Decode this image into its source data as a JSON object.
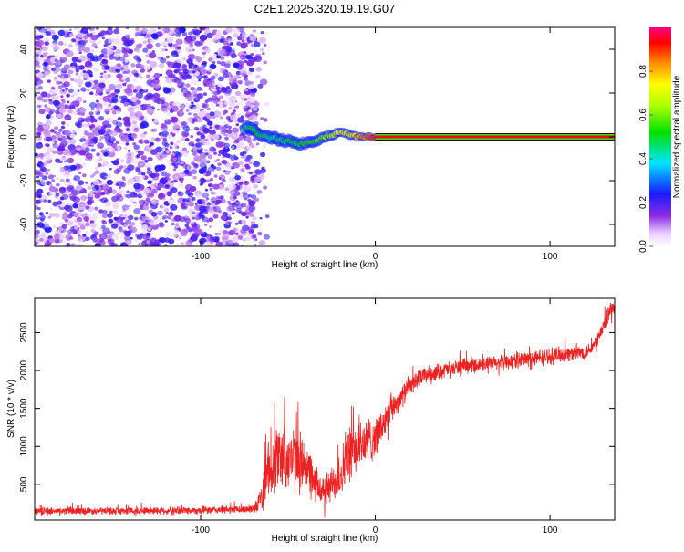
{
  "title": "C2E1.2025.320.19.19.G07",
  "chart_data": [
    {
      "type": "heatmap",
      "name": "spectrogram",
      "title": "C2E1.2025.320.19.19.G07",
      "xlabel": "Height of straight line (km)",
      "ylabel": "Frequency (Hz)",
      "xlim": [
        -195,
        137
      ],
      "ylim": [
        -50,
        50
      ],
      "xticks": [
        -100,
        0,
        100
      ],
      "xtick_labels": [
        "-100",
        "0",
        "100"
      ],
      "yticks": [
        -40,
        -20,
        0,
        20,
        40
      ],
      "ytick_labels": [
        "-40",
        "-20",
        "0",
        "20",
        "40"
      ],
      "noise_region_x": [
        -195,
        -68
      ],
      "noise_level": 0.15,
      "ridge": {
        "x": [
          -75,
          -70,
          -65,
          -60,
          -55,
          -50,
          -45,
          -40,
          -35,
          -30,
          -25,
          -20,
          -15,
          -10,
          -5,
          0,
          5
        ],
        "freq": [
          4,
          4,
          0,
          0,
          -1,
          -2,
          -3,
          -3,
          -2,
          0,
          1,
          2,
          1,
          0,
          0,
          0,
          0
        ],
        "amplitude": [
          0.45,
          0.5,
          0.5,
          0.45,
          0.45,
          0.5,
          0.5,
          0.55,
          0.55,
          0.6,
          0.65,
          0.75,
          0.7,
          0.8,
          0.85,
          0.9,
          0.95
        ]
      },
      "carrier": {
        "x_start": 0,
        "x_end": 137,
        "freq": 0,
        "amplitude": 1.0
      },
      "grid": false
    },
    {
      "type": "line",
      "name": "snr",
      "xlabel": "Height of straight line (km)",
      "ylabel": "SNR (10 * v/v)",
      "xlim": [
        -195,
        137
      ],
      "ylim": [
        30,
        2950
      ],
      "xticks": [
        -100,
        0,
        100
      ],
      "xtick_labels": [
        "-100",
        "0",
        "100"
      ],
      "yticks": [
        500,
        1000,
        1500,
        2000,
        2500
      ],
      "ytick_labels": [
        "500",
        "1000",
        "1500",
        "2000",
        "2500"
      ],
      "color": "#ee2222",
      "series": [
        {
          "name": "SNR",
          "x": [
            -195,
            -150,
            -100,
            -75,
            -68,
            -65,
            -60,
            -55,
            -50,
            -45,
            -40,
            -35,
            -30,
            -25,
            -20,
            -15,
            -10,
            -5,
            0,
            5,
            10,
            15,
            20,
            25,
            30,
            40,
            50,
            60,
            70,
            80,
            90,
            100,
            110,
            120,
            125,
            130,
            134,
            137
          ],
          "y": [
            150,
            150,
            160,
            170,
            200,
            350,
            750,
            900,
            850,
            820,
            760,
            500,
            420,
            480,
            650,
            880,
            1000,
            1060,
            1130,
            1300,
            1520,
            1650,
            1800,
            1900,
            1950,
            2010,
            2050,
            2080,
            2100,
            2130,
            2160,
            2190,
            2220,
            2240,
            2330,
            2540,
            2780,
            2820
          ],
          "noise_amp": [
            55,
            55,
            60,
            60,
            90,
            260,
            480,
            520,
            500,
            480,
            440,
            300,
            250,
            280,
            380,
            420,
            400,
            380,
            320,
            260,
            200,
            170,
            150,
            140,
            130,
            120,
            115,
            110,
            115,
            120,
            125,
            130,
            120,
            110,
            100,
            120,
            150,
            120
          ]
        }
      ]
    },
    {
      "type": "colorbar",
      "name": "amplitude-colorbar",
      "label": "Normalized spectral amplitude",
      "range": [
        0,
        1
      ],
      "ticks": [
        0.0,
        0.2,
        0.4,
        0.6,
        0.8
      ],
      "tick_labels": [
        "0.0",
        "0.2",
        "0.4",
        "0.6",
        "0.8"
      ]
    }
  ],
  "colors": {
    "frame": "#000000",
    "snr_line": "#ee2222",
    "noise_purple": "#8a2be2",
    "carrier_red": "#ff1a1a"
  }
}
